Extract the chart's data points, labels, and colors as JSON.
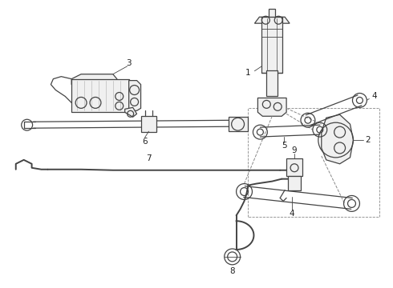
{
  "bg_color": "#ffffff",
  "line_color": "#444444",
  "dash_color": "#888888",
  "lw_main": 0.9,
  "lw_thin": 0.6,
  "lw_stab": 1.4,
  "fig_width": 4.9,
  "fig_height": 3.6,
  "dpi": 100
}
